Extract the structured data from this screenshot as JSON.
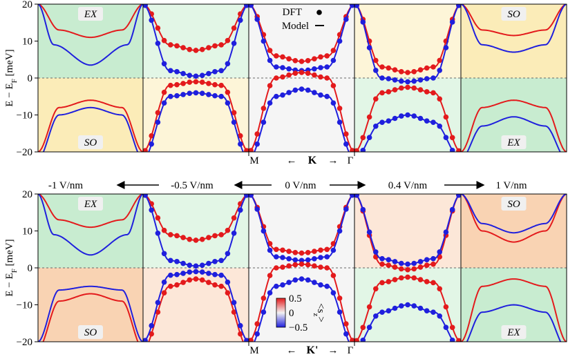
{
  "chart_data": {
    "type": "line",
    "legend": {
      "dft_label": "DFT",
      "model_label": "Model",
      "placement": "top-center"
    },
    "ylabel": "E − E",
    "ylabel_sub": "F",
    "ylabel_unit": " [meV]",
    "ylim": [
      -20,
      20
    ],
    "yticks": [
      20,
      10,
      0,
      -10,
      -20
    ],
    "fields": [
      {
        "label": "-1 V/nm",
        "arrow": "left"
      },
      {
        "label": "-0.5 V/nm",
        "arrow": "left"
      },
      {
        "label": "0 V/nm",
        "arrow": "both"
      },
      {
        "label": "0.4 V/nm",
        "arrow": "right"
      },
      {
        "label": "1 V/nm",
        "arrow": "right"
      }
    ],
    "colors": {
      "up": "#e31a1c",
      "down": "#1f1fdd",
      "green": "#c8ecd0",
      "yellow": "#fbecb8",
      "orange": "#f9d3b3",
      "lightgreen": "#e2f6e6",
      "lightyellow": "#fdf5d8",
      "lightorange": "#fce7d8",
      "gray": "#f5f5f5"
    },
    "rows": [
      {
        "valley_left": "M",
        "valley_label": "K",
        "valley_right": "Γ",
        "panels": [
          {
            "top": "green",
            "bottom": "yellow",
            "top_label": "EX",
            "bottom_label": "SO",
            "red": [
              [
                -1,
                20
              ],
              [
                -0.6,
                13
              ],
              [
                0,
                11
              ],
              [
                0.6,
                13
              ],
              [
                1,
                20
              ]
            ],
            "blue": [
              [
                -1,
                20
              ],
              [
                -0.7,
                9
              ],
              [
                0,
                3.5
              ],
              [
                0.7,
                9
              ],
              [
                1,
                20
              ]
            ],
            "red_v": [
              [
                -1,
                -20
              ],
              [
                -0.6,
                -8
              ],
              [
                0,
                -6
              ],
              [
                0.6,
                -8
              ],
              [
                1,
                -20
              ]
            ],
            "blue_v": [
              [
                -1,
                -22
              ],
              [
                -0.6,
                -10
              ],
              [
                0,
                -8
              ],
              [
                0.6,
                -10
              ],
              [
                1,
                -22
              ]
            ]
          },
          {
            "top": "lightgreen",
            "bottom": "lightyellow",
            "red": [
              [
                -1,
                20
              ],
              [
                -0.5,
                9
              ],
              [
                0,
                7.5
              ],
              [
                0.5,
                9
              ],
              [
                1,
                20
              ]
            ],
            "blue": [
              [
                -1,
                20
              ],
              [
                -0.5,
                2
              ],
              [
                0,
                0.5
              ],
              [
                0.5,
                2
              ],
              [
                1,
                20
              ]
            ],
            "red_v": [
              [
                -1,
                -20
              ],
              [
                -0.5,
                -2
              ],
              [
                0,
                -1
              ],
              [
                0.5,
                -2
              ],
              [
                1,
                -20
              ]
            ],
            "blue_v": [
              [
                -1,
                -22
              ],
              [
                -0.5,
                -5
              ],
              [
                0,
                -4
              ],
              [
                0.5,
                -5
              ],
              [
                1,
                -22
              ]
            ]
          },
          {
            "top": "gray",
            "bottom": "gray",
            "red": [
              [
                -1,
                20
              ],
              [
                -0.5,
                6
              ],
              [
                0,
                4.5
              ],
              [
                0.5,
                6
              ],
              [
                1,
                20
              ]
            ],
            "blue": [
              [
                -1,
                20
              ],
              [
                -0.5,
                3
              ],
              [
                0,
                2
              ],
              [
                0.5,
                3
              ],
              [
                1,
                20
              ]
            ],
            "red_v": [
              [
                -1,
                -20
              ],
              [
                -0.5,
                0
              ],
              [
                0,
                1.5
              ],
              [
                0.5,
                0
              ],
              [
                1,
                -20
              ]
            ],
            "blue_v": [
              [
                -1,
                -22
              ],
              [
                -0.5,
                -5
              ],
              [
                0,
                -3
              ],
              [
                0.5,
                -5
              ],
              [
                1,
                -22
              ]
            ]
          },
          {
            "top": "lightyellow",
            "bottom": "lightgreen",
            "red": [
              [
                -1,
                20
              ],
              [
                -0.5,
                3
              ],
              [
                0,
                1.5
              ],
              [
                0.5,
                3
              ],
              [
                1,
                20
              ]
            ],
            "blue": [
              [
                -1,
                20
              ],
              [
                -0.5,
                0
              ],
              [
                0,
                -1
              ],
              [
                0.5,
                0
              ],
              [
                1,
                20
              ]
            ],
            "red_v": [
              [
                -1,
                -20
              ],
              [
                -0.5,
                -4
              ],
              [
                0,
                -2.5
              ],
              [
                0.5,
                -4
              ],
              [
                1,
                -20
              ]
            ],
            "blue_v": [
              [
                -1,
                -22
              ],
              [
                -0.5,
                -12
              ],
              [
                0,
                -10
              ],
              [
                0.5,
                -12
              ],
              [
                1,
                -22
              ]
            ]
          },
          {
            "top": "yellow",
            "bottom": "green",
            "top_label": "SO",
            "bottom_label": "EX",
            "red": [
              [
                -1,
                20
              ],
              [
                -0.6,
                13
              ],
              [
                0,
                11.5
              ],
              [
                0.6,
                13
              ],
              [
                1,
                20
              ]
            ],
            "blue": [
              [
                -1,
                20
              ],
              [
                -0.6,
                9
              ],
              [
                0,
                7
              ],
              [
                0.6,
                9
              ],
              [
                1,
                20
              ]
            ],
            "red_v": [
              [
                -1,
                -20
              ],
              [
                -0.6,
                -8
              ],
              [
                0,
                -6
              ],
              [
                0.6,
                -8
              ],
              [
                1,
                -20
              ]
            ],
            "blue_v": [
              [
                -1,
                -22
              ],
              [
                -0.6,
                -13
              ],
              [
                0,
                -10.5
              ],
              [
                0.6,
                -13
              ],
              [
                1,
                -22
              ]
            ]
          }
        ]
      },
      {
        "valley_left": "M",
        "valley_label": "K'",
        "valley_right": "Γ",
        "colorbar": {
          "label": "<s",
          "label_sub": "z",
          "label_end": ">",
          "ticks": [
            "0.5",
            "0",
            "−0.5"
          ]
        },
        "panels": [
          {
            "top": "green",
            "bottom": "orange",
            "top_label": "EX",
            "bottom_label": "SO",
            "red": [
              [
                -1,
                20
              ],
              [
                -0.6,
                13
              ],
              [
                0,
                11
              ],
              [
                0.6,
                13
              ],
              [
                1,
                20
              ]
            ],
            "blue": [
              [
                -1,
                20
              ],
              [
                -0.7,
                9
              ],
              [
                0,
                3.5
              ],
              [
                0.7,
                9
              ],
              [
                1,
                20
              ]
            ],
            "red_v": [
              [
                -1,
                -22
              ],
              [
                -0.6,
                -9
              ],
              [
                0,
                -7
              ],
              [
                0.6,
                -9
              ],
              [
                1,
                -22
              ]
            ],
            "blue_v": [
              [
                -1,
                -20
              ],
              [
                -0.6,
                -6
              ],
              [
                0,
                -5
              ],
              [
                0.6,
                -6
              ],
              [
                1,
                -20
              ]
            ]
          },
          {
            "top": "lightgreen",
            "bottom": "lightorange",
            "red": [
              [
                -1,
                20
              ],
              [
                -0.5,
                9
              ],
              [
                0,
                7.5
              ],
              [
                0.5,
                9
              ],
              [
                1,
                20
              ]
            ],
            "blue": [
              [
                -1,
                20
              ],
              [
                -0.5,
                2
              ],
              [
                0,
                0.5
              ],
              [
                0.5,
                2
              ],
              [
                1,
                20
              ]
            ],
            "red_v": [
              [
                -1,
                -22
              ],
              [
                -0.5,
                -5
              ],
              [
                0,
                -3
              ],
              [
                0.5,
                -5
              ],
              [
                1,
                -22
              ]
            ],
            "blue_v": [
              [
                -1,
                -20
              ],
              [
                -0.5,
                -2
              ],
              [
                0,
                -1
              ],
              [
                0.5,
                -2
              ],
              [
                1,
                -20
              ]
            ]
          },
          {
            "top": "gray",
            "bottom": "gray",
            "red": [
              [
                -1,
                20
              ],
              [
                -0.5,
                5
              ],
              [
                0,
                4
              ],
              [
                0.5,
                5
              ],
              [
                1,
                20
              ]
            ],
            "blue": [
              [
                -1,
                20
              ],
              [
                -0.5,
                3
              ],
              [
                0,
                2
              ],
              [
                0.5,
                3
              ],
              [
                1,
                20
              ]
            ],
            "red_v": [
              [
                -1,
                -20
              ],
              [
                -0.5,
                0
              ],
              [
                0,
                1
              ],
              [
                0.5,
                0
              ],
              [
                1,
                -20
              ]
            ],
            "blue_v": [
              [
                -1,
                -22
              ],
              [
                -0.5,
                -5
              ],
              [
                0,
                -3
              ],
              [
                0.5,
                -5
              ],
              [
                1,
                -22
              ]
            ]
          },
          {
            "top": "lightorange",
            "bottom": "lightgreen",
            "red": [
              [
                -1,
                20
              ],
              [
                -0.5,
                1
              ],
              [
                0,
                -0.5
              ],
              [
                0.5,
                1
              ],
              [
                1,
                20
              ]
            ],
            "blue": [
              [
                -1,
                20
              ],
              [
                -0.5,
                2.5
              ],
              [
                0,
                1
              ],
              [
                0.5,
                2.5
              ],
              [
                1,
                20
              ]
            ],
            "red_v": [
              [
                -1,
                -20
              ],
              [
                -0.5,
                -4
              ],
              [
                0,
                -2.5
              ],
              [
                0.5,
                -4
              ],
              [
                1,
                -20
              ]
            ],
            "blue_v": [
              [
                -1,
                -22
              ],
              [
                -0.5,
                -12
              ],
              [
                0,
                -10
              ],
              [
                0.5,
                -12
              ],
              [
                1,
                -22
              ]
            ]
          },
          {
            "top": "orange",
            "bottom": "green",
            "top_label": "SO",
            "bottom_label": "EX",
            "red": [
              [
                -1,
                20
              ],
              [
                -0.6,
                10
              ],
              [
                0,
                7
              ],
              [
                0.6,
                10
              ],
              [
                1,
                20
              ]
            ],
            "blue": [
              [
                -1,
                20
              ],
              [
                -0.6,
                12
              ],
              [
                0,
                9.5
              ],
              [
                0.6,
                12
              ],
              [
                1,
                20
              ]
            ],
            "red_v": [
              [
                -1,
                -20
              ],
              [
                -0.6,
                -5
              ],
              [
                0,
                -3
              ],
              [
                0.6,
                -5
              ],
              [
                1,
                -20
              ]
            ],
            "blue_v": [
              [
                -1,
                -22
              ],
              [
                -0.6,
                -12
              ],
              [
                0,
                -10
              ],
              [
                0.6,
                -12
              ],
              [
                1,
                -22
              ]
            ]
          }
        ]
      }
    ],
    "dft_panels": [
      1,
      2,
      3
    ]
  }
}
